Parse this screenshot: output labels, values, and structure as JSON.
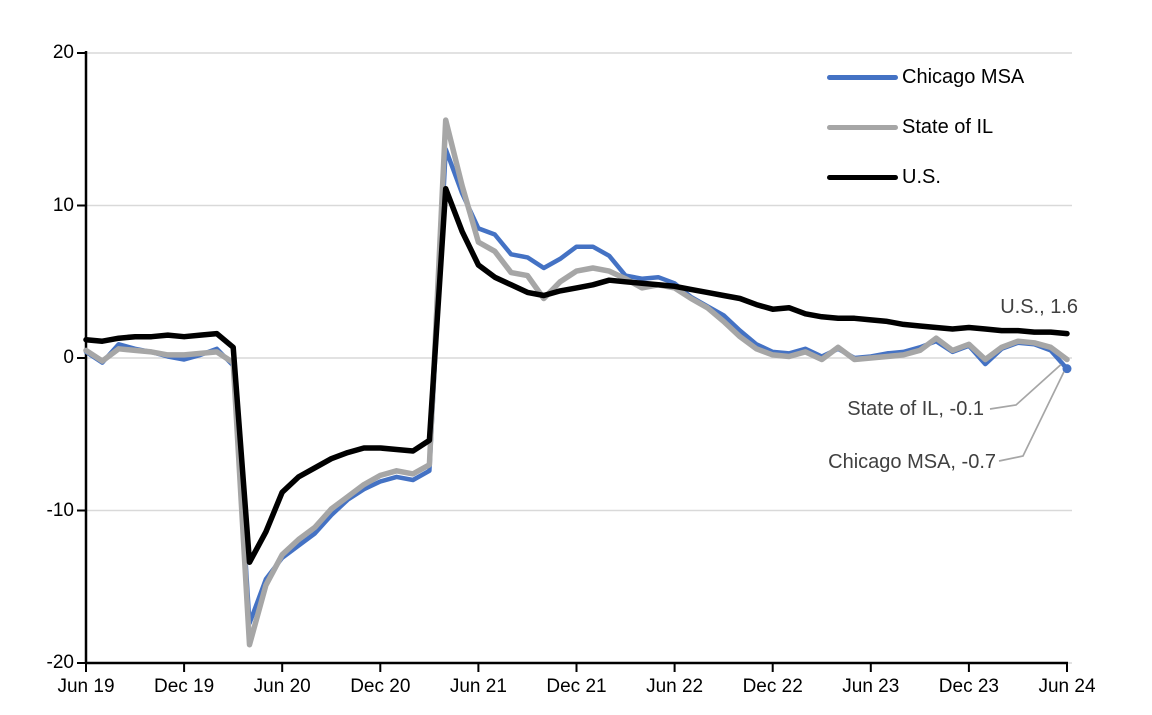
{
  "chart_data": {
    "type": "line",
    "title": "",
    "xlabel": "",
    "ylabel": "",
    "x_unit": "monthly, Jun 2019 - Jun 2024",
    "x_tick_labels": [
      "Jun 19",
      "Dec 19",
      "Jun 20",
      "Dec 20",
      "Jun 21",
      "Dec 21",
      "Jun 22",
      "Dec 22",
      "Jun 23",
      "Dec 23",
      "Jun 24"
    ],
    "y_tick_labels": [
      "20",
      "10",
      "0",
      "-10",
      "-20"
    ],
    "y_tick_values": [
      20,
      10,
      0,
      -10,
      -20
    ],
    "ylim": [
      -20,
      20
    ],
    "grid": true,
    "gridline_color": "#d9d9d9",
    "axis_color": "#000000",
    "legend_position": "top-right",
    "series": [
      {
        "name": "Chicago MSA",
        "color": "#4472c4",
        "stroke_width": 4.5,
        "end_marker": true,
        "values": [
          0.4,
          -0.3,
          0.9,
          0.6,
          0.4,
          0.1,
          -0.1,
          0.2,
          0.6,
          -0.5,
          -17.4,
          -14.5,
          -13.1,
          -12.3,
          -11.5,
          -10.3,
          -9.3,
          -8.6,
          -8.1,
          -7.8,
          -8.0,
          -7.4,
          13.7,
          10.8,
          8.5,
          8.1,
          6.8,
          6.6,
          5.9,
          6.5,
          7.3,
          7.3,
          6.7,
          5.4,
          5.2,
          5.3,
          4.9,
          4.0,
          3.4,
          2.8,
          1.8,
          0.9,
          0.4,
          0.3,
          0.6,
          0.1,
          0.6,
          0.0,
          0.1,
          0.3,
          0.4,
          0.7,
          1.1,
          0.4,
          0.8,
          -0.4,
          0.6,
          1.0,
          0.9,
          0.5,
          -0.7
        ]
      },
      {
        "name": "State of IL",
        "color": "#a6a6a6",
        "stroke_width": 5.5,
        "end_marker": false,
        "values": [
          0.5,
          -0.2,
          0.6,
          0.5,
          0.4,
          0.2,
          0.2,
          0.3,
          0.4,
          -0.3,
          -18.8,
          -14.9,
          -12.9,
          -11.9,
          -11.1,
          -9.9,
          -9.1,
          -8.3,
          -7.7,
          -7.4,
          -7.6,
          -7.0,
          15.6,
          11.3,
          7.6,
          7.0,
          5.6,
          5.4,
          3.9,
          5.0,
          5.7,
          5.9,
          5.7,
          5.2,
          4.6,
          4.8,
          4.6,
          3.9,
          3.3,
          2.4,
          1.4,
          0.6,
          0.2,
          0.1,
          0.4,
          -0.1,
          0.7,
          -0.1,
          0.0,
          0.1,
          0.2,
          0.5,
          1.3,
          0.5,
          0.9,
          -0.1,
          0.7,
          1.1,
          1.0,
          0.7,
          -0.1
        ]
      },
      {
        "name": "U.S.",
        "color": "#000000",
        "stroke_width": 5.5,
        "end_marker": false,
        "values": [
          1.2,
          1.1,
          1.3,
          1.4,
          1.4,
          1.5,
          1.4,
          1.5,
          1.6,
          0.7,
          -13.4,
          -11.4,
          -8.8,
          -7.8,
          -7.2,
          -6.6,
          -6.2,
          -5.9,
          -5.9,
          -6.0,
          -6.1,
          -5.4,
          11.1,
          8.3,
          6.1,
          5.3,
          4.8,
          4.3,
          4.1,
          4.4,
          4.6,
          4.8,
          5.1,
          5.0,
          4.9,
          4.8,
          4.7,
          4.5,
          4.3,
          4.1,
          3.9,
          3.5,
          3.2,
          3.3,
          2.9,
          2.7,
          2.6,
          2.6,
          2.5,
          2.4,
          2.2,
          2.1,
          2.0,
          1.9,
          2.0,
          1.9,
          1.8,
          1.8,
          1.7,
          1.7,
          1.6
        ]
      }
    ],
    "annotations": [
      {
        "text": "U.S., 1.6",
        "series": "U.S.",
        "value": 1.6
      },
      {
        "text": "State of IL, -0.1",
        "series": "State of IL",
        "value": -0.1
      },
      {
        "text": "Chicago MSA, -0.7",
        "series": "Chicago MSA",
        "value": -0.7
      }
    ],
    "leader_line_color": "#a6a6a6"
  }
}
